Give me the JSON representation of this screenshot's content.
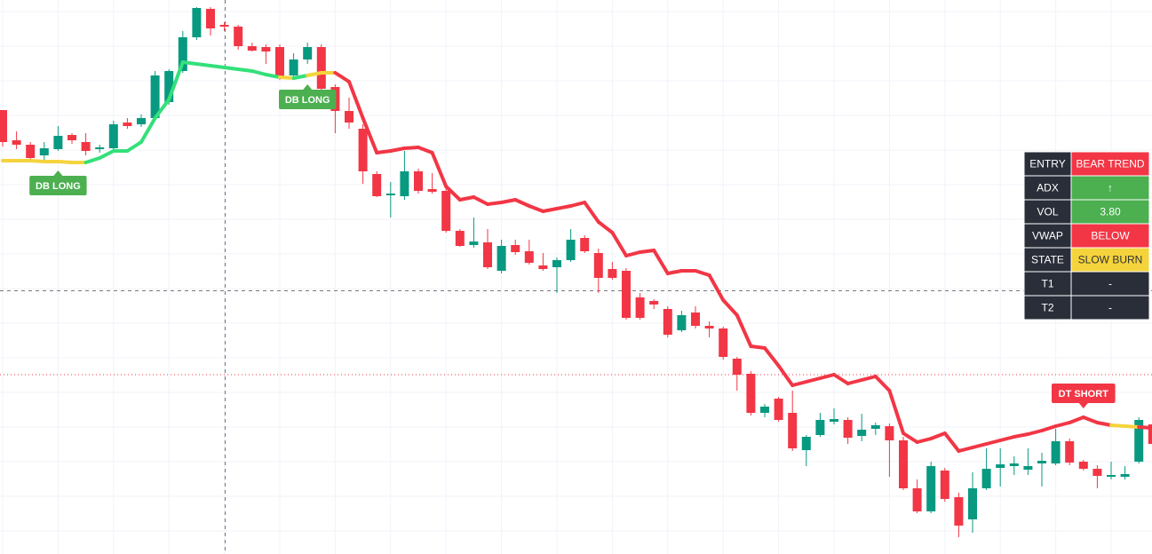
{
  "chart_data": {
    "type": "candlestick",
    "ylim": [
      0,
      624
    ],
    "up_color": "#089981",
    "down_color": "#f23645",
    "candles": [
      [
        500,
        500,
        459,
        464
      ],
      [
        466,
        476,
        456,
        461
      ],
      [
        461,
        464,
        444,
        446
      ],
      [
        449,
        464,
        441,
        457
      ],
      [
        456,
        482,
        454,
        471
      ],
      [
        472,
        474,
        462,
        466
      ],
      [
        464,
        474,
        449,
        454
      ],
      [
        456,
        461,
        452,
        458
      ],
      [
        457,
        488,
        456,
        484
      ],
      [
        486,
        491,
        479,
        482
      ],
      [
        484,
        495,
        481,
        491
      ],
      [
        491,
        544,
        489,
        539
      ],
      [
        509,
        546,
        506,
        544
      ],
      [
        544,
        589,
        542,
        582
      ],
      [
        582,
        616,
        579,
        615
      ],
      [
        614,
        616,
        584,
        592
      ],
      [
        596,
        599,
        589,
        594
      ],
      [
        594,
        596,
        568,
        572
      ],
      [
        572,
        576,
        566,
        567
      ],
      [
        571,
        574,
        552,
        566
      ],
      [
        571,
        574,
        534,
        536
      ],
      [
        539,
        564,
        534,
        557
      ],
      [
        557,
        576,
        552,
        571
      ],
      [
        571,
        574,
        522,
        524
      ],
      [
        526,
        529,
        474,
        499
      ],
      [
        499,
        514,
        479,
        486
      ],
      [
        479,
        484,
        417,
        431
      ],
      [
        428,
        431,
        402,
        403
      ],
      [
        404,
        419,
        379,
        406
      ],
      [
        403,
        454,
        399,
        431
      ],
      [
        431,
        434,
        406,
        409
      ],
      [
        411,
        429,
        406,
        408
      ],
      [
        409,
        412,
        362,
        364
      ],
      [
        364,
        366,
        346,
        347
      ],
      [
        348,
        379,
        345,
        352
      ],
      [
        351,
        366,
        321,
        323
      ],
      [
        319,
        354,
        316,
        347
      ],
      [
        348,
        354,
        337,
        340
      ],
      [
        341,
        354,
        326,
        328
      ],
      [
        325,
        339,
        319,
        321
      ],
      [
        323,
        334,
        294,
        331
      ],
      [
        331,
        366,
        329,
        354
      ],
      [
        356,
        359,
        339,
        341
      ],
      [
        339,
        344,
        294,
        311
      ],
      [
        321,
        329,
        309,
        311
      ],
      [
        319,
        322,
        264,
        266
      ],
      [
        289,
        294,
        264,
        266
      ],
      [
        285,
        287,
        276,
        281
      ],
      [
        276,
        279,
        244,
        247
      ],
      [
        252,
        274,
        250,
        269
      ],
      [
        272,
        279,
        254,
        257
      ],
      [
        257,
        262,
        244,
        254
      ],
      [
        254,
        256,
        219,
        222
      ],
      [
        220,
        222,
        184,
        202
      ],
      [
        203,
        206,
        156,
        159
      ],
      [
        159,
        169,
        154,
        166
      ],
      [
        175,
        177,
        149,
        151
      ],
      [
        159,
        184,
        116,
        119
      ],
      [
        117,
        134,
        99,
        132
      ],
      [
        134,
        159,
        132,
        151
      ],
      [
        149,
        164,
        146,
        152
      ],
      [
        151,
        154,
        124,
        131
      ],
      [
        133,
        158,
        127,
        140
      ],
      [
        141,
        148,
        134,
        145
      ],
      [
        144,
        147,
        87,
        128
      ],
      [
        128,
        132,
        72,
        74
      ],
      [
        74,
        84,
        46,
        48
      ],
      [
        48,
        104,
        46,
        99
      ],
      [
        94,
        97,
        59,
        62
      ],
      [
        64,
        69,
        19,
        32
      ],
      [
        39,
        92,
        24,
        74
      ],
      [
        74,
        119,
        72,
        96
      ],
      [
        97,
        119,
        76,
        101
      ],
      [
        99,
        110,
        89,
        102
      ],
      [
        95,
        119,
        89,
        99
      ],
      [
        102,
        114,
        76,
        105
      ],
      [
        102,
        141,
        100,
        127
      ],
      [
        127,
        130,
        100,
        103
      ],
      [
        104,
        106,
        94,
        96
      ],
      [
        96,
        100,
        74,
        88
      ],
      [
        87,
        104,
        84,
        89
      ],
      [
        87,
        99,
        84,
        90
      ],
      [
        104,
        154,
        102,
        151
      ],
      [
        146,
        149,
        121,
        124
      ]
    ],
    "line": {
      "values": [
        443,
        443,
        443,
        442,
        442,
        441,
        441,
        446,
        454,
        454,
        464,
        491,
        512,
        554,
        552,
        550,
        548,
        546,
        544,
        540,
        537,
        536,
        539,
        542,
        542,
        532,
        491,
        452,
        454,
        457,
        458,
        452,
        414,
        399,
        402,
        394,
        396,
        399,
        392,
        386,
        389,
        392,
        396,
        374,
        362,
        336,
        340,
        342,
        316,
        319,
        319,
        314,
        286,
        269,
        234,
        232,
        212,
        190,
        194,
        198,
        202,
        192,
        196,
        200,
        184,
        136,
        126,
        130,
        136,
        116,
        120,
        124,
        128,
        132,
        135,
        139,
        144,
        148,
        154,
        148,
        145,
        144,
        143,
        142
      ],
      "colors": [
        "#f5d33c",
        "#f5d33c",
        "#f5d33c",
        "#f5d33c",
        "#f5d33c",
        "#f5d33c",
        "#f5d33c",
        "#33e07a",
        "#33e07a",
        "#33e07a",
        "#33e07a",
        "#33e07a",
        "#33e07a",
        "#33e07a",
        "#33e07a",
        "#33e07a",
        "#33e07a",
        "#33e07a",
        "#33e07a",
        "#33e07a",
        "#33e07a",
        "#f5d33c",
        "#33e07a",
        "#f5d33c",
        "#f5d33c",
        "#f23645",
        "#f23645",
        "#f23645",
        "#f23645",
        "#f23645",
        "#f23645",
        "#f23645",
        "#f23645",
        "#f23645",
        "#f23645",
        "#f23645",
        "#f23645",
        "#f23645",
        "#f23645",
        "#f23645",
        "#f23645",
        "#f23645",
        "#f23645",
        "#f23645",
        "#f23645",
        "#f23645",
        "#f23645",
        "#f23645",
        "#f23645",
        "#f23645",
        "#f23645",
        "#f23645",
        "#f23645",
        "#f23645",
        "#f23645",
        "#f23645",
        "#f23645",
        "#f23645",
        "#f23645",
        "#f23645",
        "#f23645",
        "#f23645",
        "#f23645",
        "#f23645",
        "#f23645",
        "#f23645",
        "#f23645",
        "#f23645",
        "#f23645",
        "#f23645",
        "#f23645",
        "#f23645",
        "#f23645",
        "#f23645",
        "#f23645",
        "#f23645",
        "#f23645",
        "#f23645",
        "#f23645",
        "#f23645",
        "#f23645",
        "#f5d33c",
        "#f5d33c",
        "#f23645"
      ]
    },
    "annotations": [
      {
        "text": "DB LONG",
        "index": 4,
        "position": "below",
        "color": "#4caf50"
      },
      {
        "text": "DB LONG",
        "index": 22,
        "position": "below",
        "color": "#4caf50"
      },
      {
        "text": "DT SHORT",
        "index": 78,
        "position": "above",
        "color": "#f23645"
      }
    ]
  },
  "table": {
    "rows": [
      [
        "ENTRY",
        "BEAR TREND"
      ],
      [
        "ADX",
        "↑"
      ],
      [
        "VOL",
        "3.80"
      ],
      [
        "VWAP",
        "BELOW"
      ],
      [
        "STATE",
        "SLOW BURN"
      ],
      [
        "T1",
        "-"
      ],
      [
        "T2",
        "-"
      ]
    ],
    "colors": [
      "#f23645",
      "#4caf50",
      "#4caf50",
      "#f23645",
      "#f5d33c",
      "#2a2e39",
      "#2a2e39"
    ]
  }
}
